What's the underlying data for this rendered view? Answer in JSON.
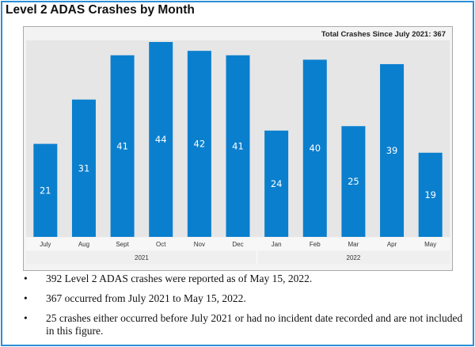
{
  "chart_data": {
    "type": "bar",
    "title": "Level 2 ADAS Crashes by Month",
    "annotation": "Total Crashes Since July 2021: 367",
    "categories": [
      "July",
      "Aug",
      "Sept",
      "Oct",
      "Nov",
      "Dec",
      "Jan",
      "Feb",
      "Mar",
      "Apr",
      "May"
    ],
    "years": [
      {
        "label": "2021",
        "span": 6
      },
      {
        "label": "2022",
        "span": 5
      }
    ],
    "values": [
      21,
      31,
      41,
      44,
      42,
      41,
      24,
      40,
      25,
      39,
      19
    ],
    "ylim": [
      0,
      44
    ],
    "bar_color": "#0a7fce",
    "xlabel": "",
    "ylabel": ""
  },
  "bullets": [
    "392 Level 2 ADAS crashes were reported as of May 15, 2022.",
    "367 occurred from July 2021 to May 15, 2022.",
    "25 crashes either occurred before July 2021 or had no incident date recorded and are not included in this figure."
  ],
  "bullet_char": "•"
}
